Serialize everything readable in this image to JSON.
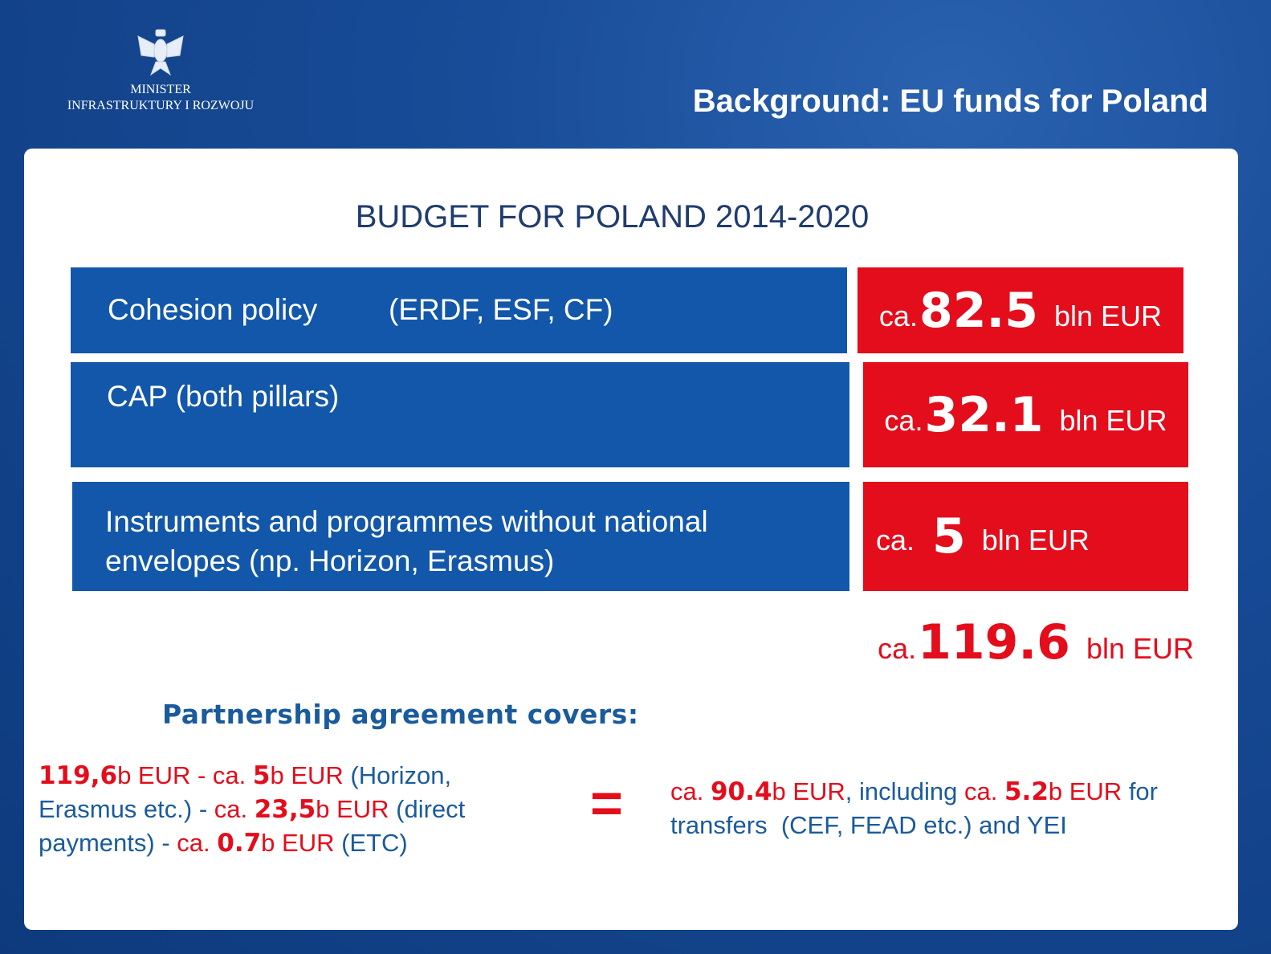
{
  "header": {
    "ministry_line1": "MINISTER",
    "ministry_line2": "INFRASTRUKTURY I ROZWOJU",
    "title": "Background: EU funds for Poland"
  },
  "budget": {
    "title": "BUDGET FOR POLAND 2014-2020",
    "rows": [
      {
        "label": "Cohesion policy",
        "detail": "(ERDF, ESF, CF)",
        "prefix": "ca.",
        "amount": "82.5",
        "unit": "bln EUR"
      },
      {
        "label": "CAP (both pillars)",
        "prefix": "ca.",
        "amount": "32.1",
        "unit": "bln EUR"
      },
      {
        "label": "Instruments and programmes without national envelopes (np. Horizon, Erasmus)",
        "prefix": "ca.",
        "amount": "5",
        "unit": "bln EUR"
      }
    ],
    "total": {
      "prefix": "ca.",
      "amount": "119.6",
      "unit": "bln EUR"
    }
  },
  "partnership": {
    "heading": "Partnership agreement covers:",
    "left": [
      {
        "text": "119,6",
        "style": "red-bold"
      },
      {
        "text": "b EUR - ca. ",
        "style": "red"
      },
      {
        "text": "5",
        "style": "red-bold"
      },
      {
        "text": "b EUR",
        "style": "red"
      },
      {
        "text": " (Horizon, Erasmus etc.) - ",
        "style": "blue"
      },
      {
        "text": "ca. ",
        "style": "red"
      },
      {
        "text": "23,5",
        "style": "red-bold"
      },
      {
        "text": "b EUR",
        "style": "red"
      },
      {
        "text": " (direct payments) - ",
        "style": "blue"
      },
      {
        "text": "ca. ",
        "style": "red"
      },
      {
        "text": "0.7",
        "style": "red-bold"
      },
      {
        "text": "b EUR",
        "style": "red"
      },
      {
        "text": " (ETC)",
        "style": "blue"
      }
    ],
    "equals": "=",
    "right": [
      {
        "text": "ca. ",
        "style": "red"
      },
      {
        "text": "90.4",
        "style": "red-bold"
      },
      {
        "text": "b EUR",
        "style": "red"
      },
      {
        "text": ", including ",
        "style": "blue"
      },
      {
        "text": "ca. ",
        "style": "red"
      },
      {
        "text": "5.2",
        "style": "red-bold"
      },
      {
        "text": "b EUR",
        "style": "red"
      },
      {
        "text": " for transfers  (CEF, FEAD etc.) and YEI",
        "style": "blue"
      }
    ]
  }
}
